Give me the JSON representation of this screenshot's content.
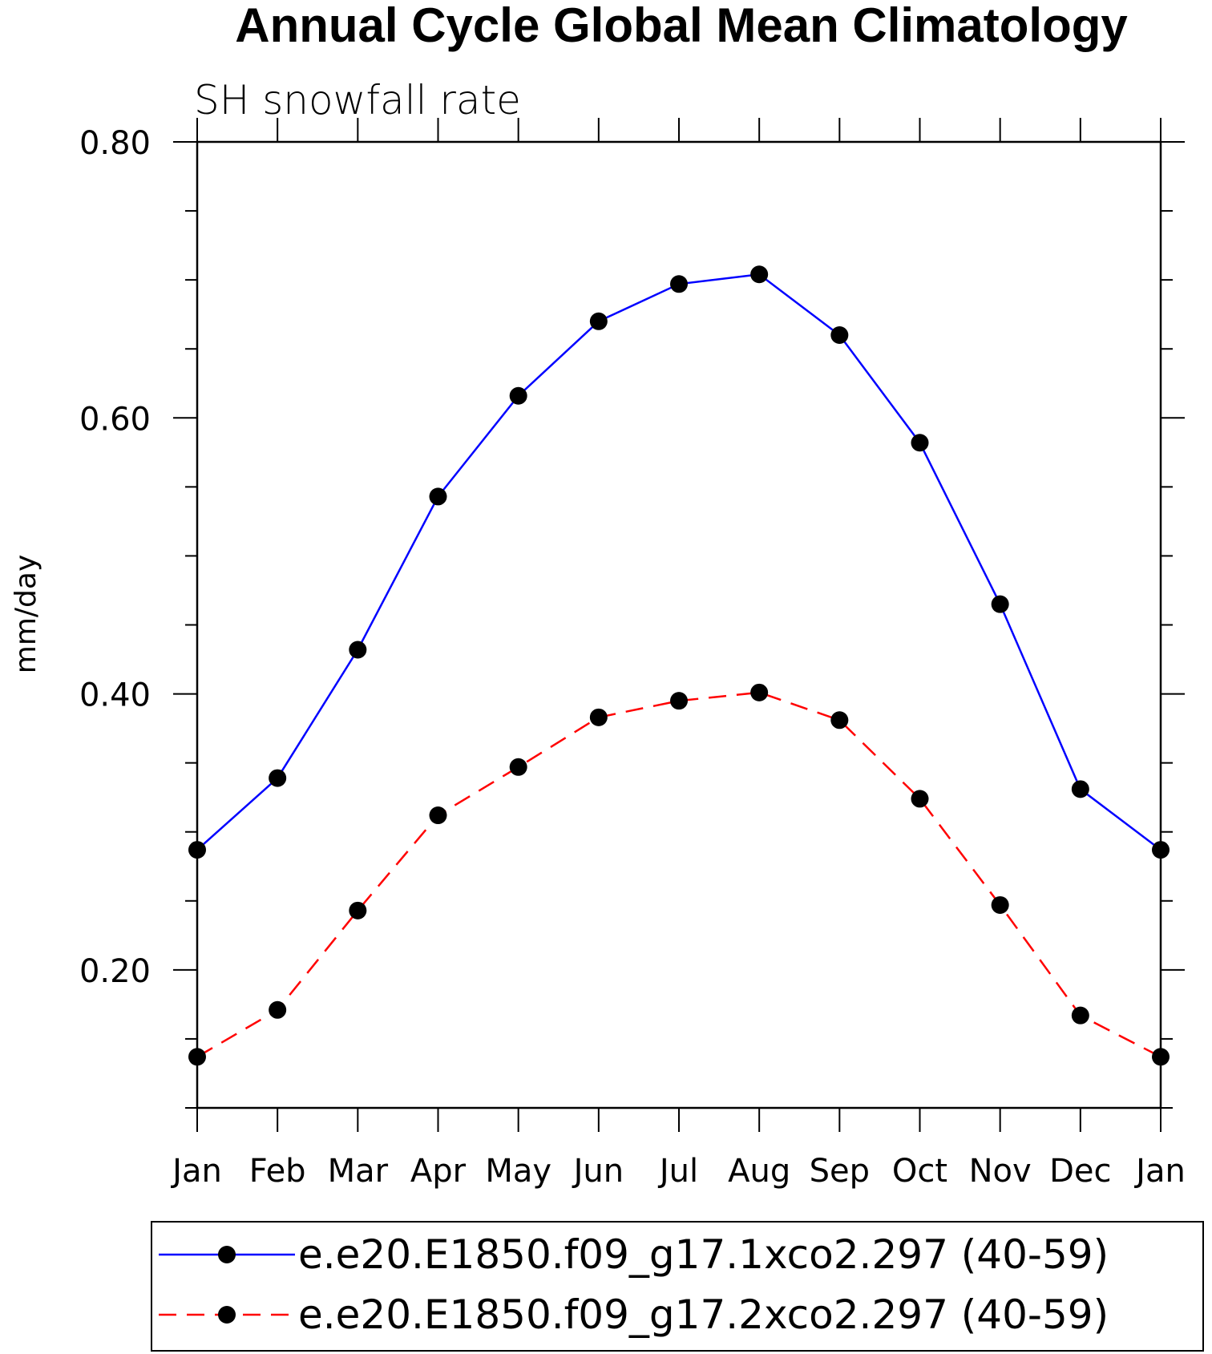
{
  "chart_data": {
    "type": "line",
    "title": "Annual Cycle Global Mean Climatology",
    "subtitle": "SH snowfall rate",
    "ylabel": "mm/day",
    "xlabel": "",
    "categories": [
      "Jan",
      "Feb",
      "Mar",
      "Apr",
      "May",
      "Jun",
      "Jul",
      "Aug",
      "Sep",
      "Oct",
      "Nov",
      "Dec",
      "Jan"
    ],
    "ylim": [
      0.1,
      0.8
    ],
    "y_ticks": [
      0.2,
      0.4,
      0.6,
      0.8
    ],
    "y_tick_labels": [
      "0.20",
      "0.40",
      "0.60",
      "0.80"
    ],
    "y_minor_step": 0.05,
    "grid": false,
    "legend_position": "bottom",
    "series": [
      {
        "name": "e.e20.E1850.f09_g17.1xco2.297 (40-59)",
        "color": "#0000ff",
        "dash": "solid",
        "values": [
          0.287,
          0.339,
          0.432,
          0.543,
          0.616,
          0.67,
          0.697,
          0.704,
          0.66,
          0.582,
          0.465,
          0.331,
          0.287
        ]
      },
      {
        "name": "e.e20.E1850.f09_g17.2xco2.297 (40-59)",
        "color": "#ff0000",
        "dash": "dashed",
        "values": [
          0.137,
          0.171,
          0.243,
          0.312,
          0.347,
          0.383,
          0.395,
          0.401,
          0.381,
          0.324,
          0.247,
          0.167,
          0.137
        ]
      }
    ]
  }
}
